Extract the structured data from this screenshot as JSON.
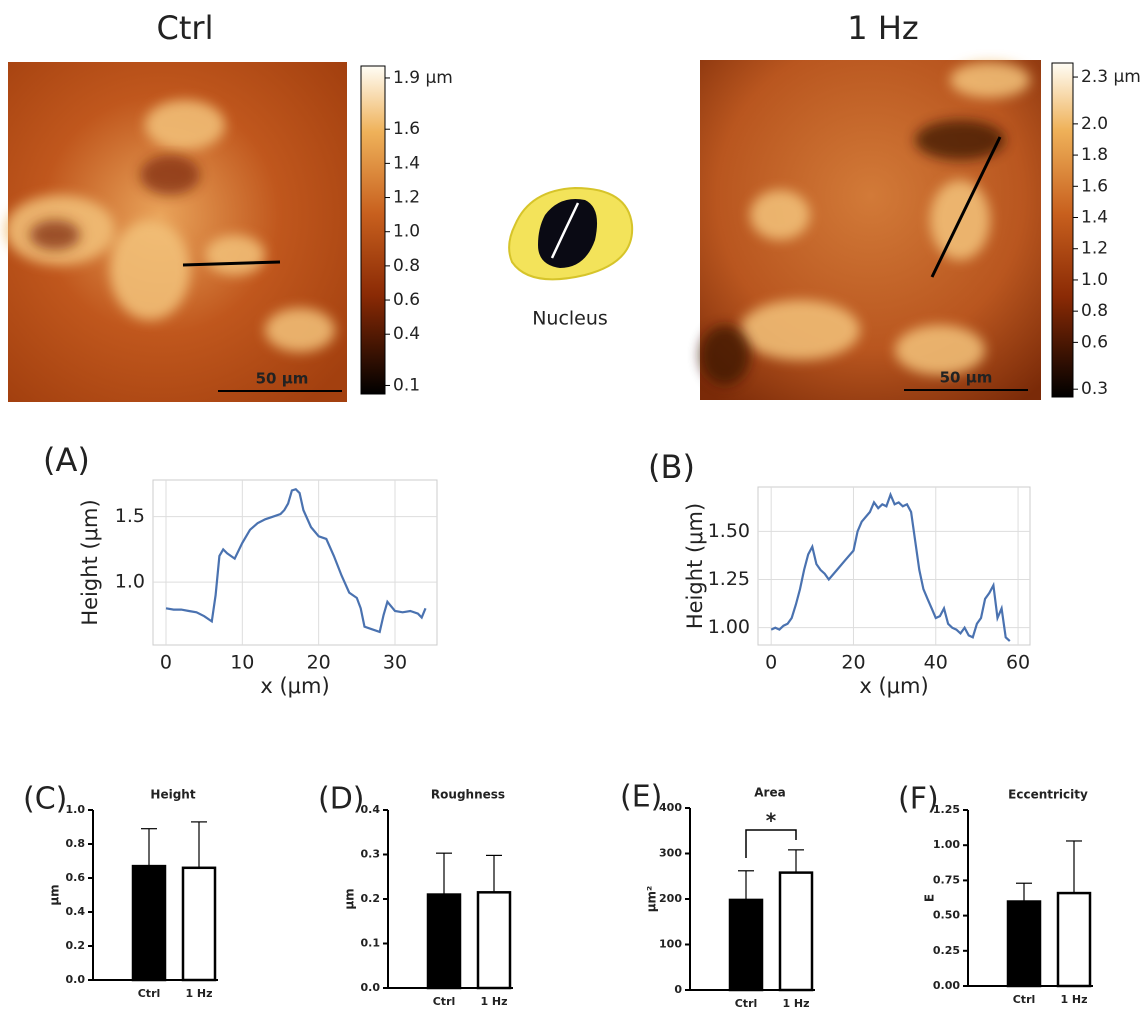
{
  "images": [
    {
      "title": "Ctrl",
      "scale_bar": "50 μm",
      "colorbar": {
        "lim": [
          0.05,
          1.97
        ],
        "ticks": [
          {
            "value": 1.9,
            "label": "1.9 μm"
          },
          1.6,
          1.4,
          1.2,
          {
            "value": 1,
            "label": "1.0"
          },
          0.8,
          0.6,
          0.4,
          0.1
        ]
      }
    },
    {
      "title": "1 Hz",
      "scale_bar": "50 μm",
      "colorbar": {
        "lim": [
          0.25,
          2.39
        ],
        "ticks": [
          {
            "value": 2.3,
            "label": "2.3 μm"
          },
          {
            "value": 2,
            "label": "2.0"
          },
          1.8,
          1.6,
          1.4,
          1.2,
          {
            "value": 1,
            "label": "1.0"
          },
          0.8,
          0.6,
          0.3
        ]
      }
    }
  ],
  "nucleus_label": "Nucleus",
  "chart_data": [
    {
      "type": "line",
      "panel": "(A)",
      "x_label": "x (μm)",
      "y_label": "Height (μm)",
      "color": "#4a72b0",
      "grid": true,
      "x": [
        0,
        1,
        2,
        3,
        4,
        5,
        6,
        6.5,
        7,
        7.5,
        8,
        9,
        10,
        11,
        12,
        13,
        14,
        15,
        15.5,
        16,
        16.5,
        17,
        17.5,
        18,
        19,
        20,
        21,
        22,
        23,
        24,
        25,
        25.5,
        26,
        27,
        28,
        28.5,
        29,
        30,
        31,
        32,
        33,
        33.5,
        34
      ],
      "values": [
        0.8,
        0.79,
        0.79,
        0.78,
        0.77,
        0.74,
        0.7,
        0.9,
        1.2,
        1.25,
        1.22,
        1.18,
        1.3,
        1.4,
        1.45,
        1.48,
        1.5,
        1.52,
        1.55,
        1.6,
        1.7,
        1.71,
        1.68,
        1.55,
        1.42,
        1.35,
        1.33,
        1.2,
        1.05,
        0.92,
        0.88,
        0.8,
        0.66,
        0.64,
        0.62,
        0.75,
        0.85,
        0.78,
        0.77,
        0.78,
        0.76,
        0.73,
        0.8
      ],
      "xlim": [
        -1.7,
        35.5
      ],
      "ylim": [
        0.52,
        1.78
      ],
      "xticks": [
        0,
        10,
        20,
        30
      ],
      "yticks": [
        {
          "value": 1,
          "label": "1.0"
        },
        1.5
      ]
    },
    {
      "type": "line",
      "panel": "(B)",
      "x_label": "x (μm)",
      "y_label": "Height (μm)",
      "color": "#4a72b0",
      "grid": true,
      "x": [
        0,
        1,
        2,
        3,
        4,
        5,
        6,
        7,
        8,
        9,
        10,
        11,
        12,
        13,
        14,
        16,
        18,
        20,
        21,
        22,
        24,
        25,
        26,
        27,
        28,
        29,
        30,
        31,
        32,
        33,
        34,
        35,
        36,
        37,
        38,
        39,
        40,
        41,
        42,
        43,
        44,
        45,
        46,
        47,
        48,
        49,
        50,
        51,
        52,
        53,
        54,
        55,
        56,
        57,
        58
      ],
      "values": [
        0.99,
        1.0,
        0.99,
        1.01,
        1.02,
        1.05,
        1.12,
        1.2,
        1.3,
        1.38,
        1.42,
        1.33,
        1.3,
        1.28,
        1.25,
        1.3,
        1.35,
        1.4,
        1.5,
        1.55,
        1.6,
        1.65,
        1.62,
        1.64,
        1.63,
        1.69,
        1.64,
        1.65,
        1.63,
        1.64,
        1.6,
        1.45,
        1.3,
        1.2,
        1.15,
        1.1,
        1.05,
        1.06,
        1.1,
        1.02,
        1.0,
        0.99,
        0.97,
        1.0,
        0.96,
        0.95,
        1.02,
        1.05,
        1.15,
        1.18,
        1.22,
        1.05,
        1.1,
        0.95,
        0.93
      ],
      "xlim": [
        -3.2,
        62.9
      ],
      "ylim": [
        0.91,
        1.73
      ],
      "xticks": [
        0,
        20,
        40,
        60
      ],
      "yticks": [
        {
          "value": 1,
          "label": "1.00"
        },
        1.25,
        {
          "value": 1.5,
          "label": "1.50"
        }
      ]
    },
    {
      "type": "bar",
      "panel": "(C)",
      "title": "Height",
      "y_label": "μm",
      "categories": [
        "Ctrl",
        "1 Hz"
      ],
      "colors": [
        "#000000",
        "#ffffff"
      ],
      "values": [
        0.67,
        0.66
      ],
      "errors": [
        0.22,
        0.27
      ],
      "ylim": [
        0,
        1
      ],
      "yticks": [
        {
          "value": 0,
          "label": "0.0"
        },
        0.2,
        0.4,
        0.6,
        0.8,
        {
          "value": 1,
          "label": "1.0"
        }
      ]
    },
    {
      "type": "bar",
      "panel": "(D)",
      "title": "Roughness",
      "y_label": "μm",
      "categories": [
        "Ctrl",
        "1 Hz"
      ],
      "colors": [
        "#000000",
        "#ffffff"
      ],
      "values": [
        0.21,
        0.215
      ],
      "errors": [
        0.093,
        0.083
      ],
      "ylim": [
        0,
        0.4
      ],
      "yticks": [
        {
          "value": 0,
          "label": "0.0"
        },
        0.1,
        0.2,
        0.3,
        0.4
      ]
    },
    {
      "type": "bar",
      "panel": "(E)",
      "title": "Area",
      "y_label": "μm²",
      "annotation": "*",
      "categories": [
        "Ctrl",
        "1 Hz"
      ],
      "colors": [
        "#000000",
        "#ffffff"
      ],
      "values": [
        198,
        258
      ],
      "errors": [
        64,
        50
      ],
      "ylim": [
        0,
        400
      ],
      "yticks": [
        0,
        100,
        200,
        300,
        400
      ]
    },
    {
      "type": "bar",
      "panel": "(F)",
      "title": "Eccentricity",
      "y_label": "E",
      "categories": [
        "Ctrl",
        "1 Hz"
      ],
      "colors": [
        "#000000",
        "#ffffff"
      ],
      "values": [
        0.6,
        0.66
      ],
      "errors": [
        0.13,
        0.37
      ],
      "ylim": [
        0,
        1.25
      ],
      "yticks": [
        {
          "value": 0,
          "label": "0.00"
        },
        {
          "value": 0.25,
          "label": "0.25"
        },
        {
          "value": 0.5,
          "label": "0.50"
        },
        {
          "value": 0.75,
          "label": "0.75"
        },
        {
          "value": 1,
          "label": "1.00"
        },
        {
          "value": 1.25,
          "label": "1.25"
        }
      ]
    }
  ]
}
